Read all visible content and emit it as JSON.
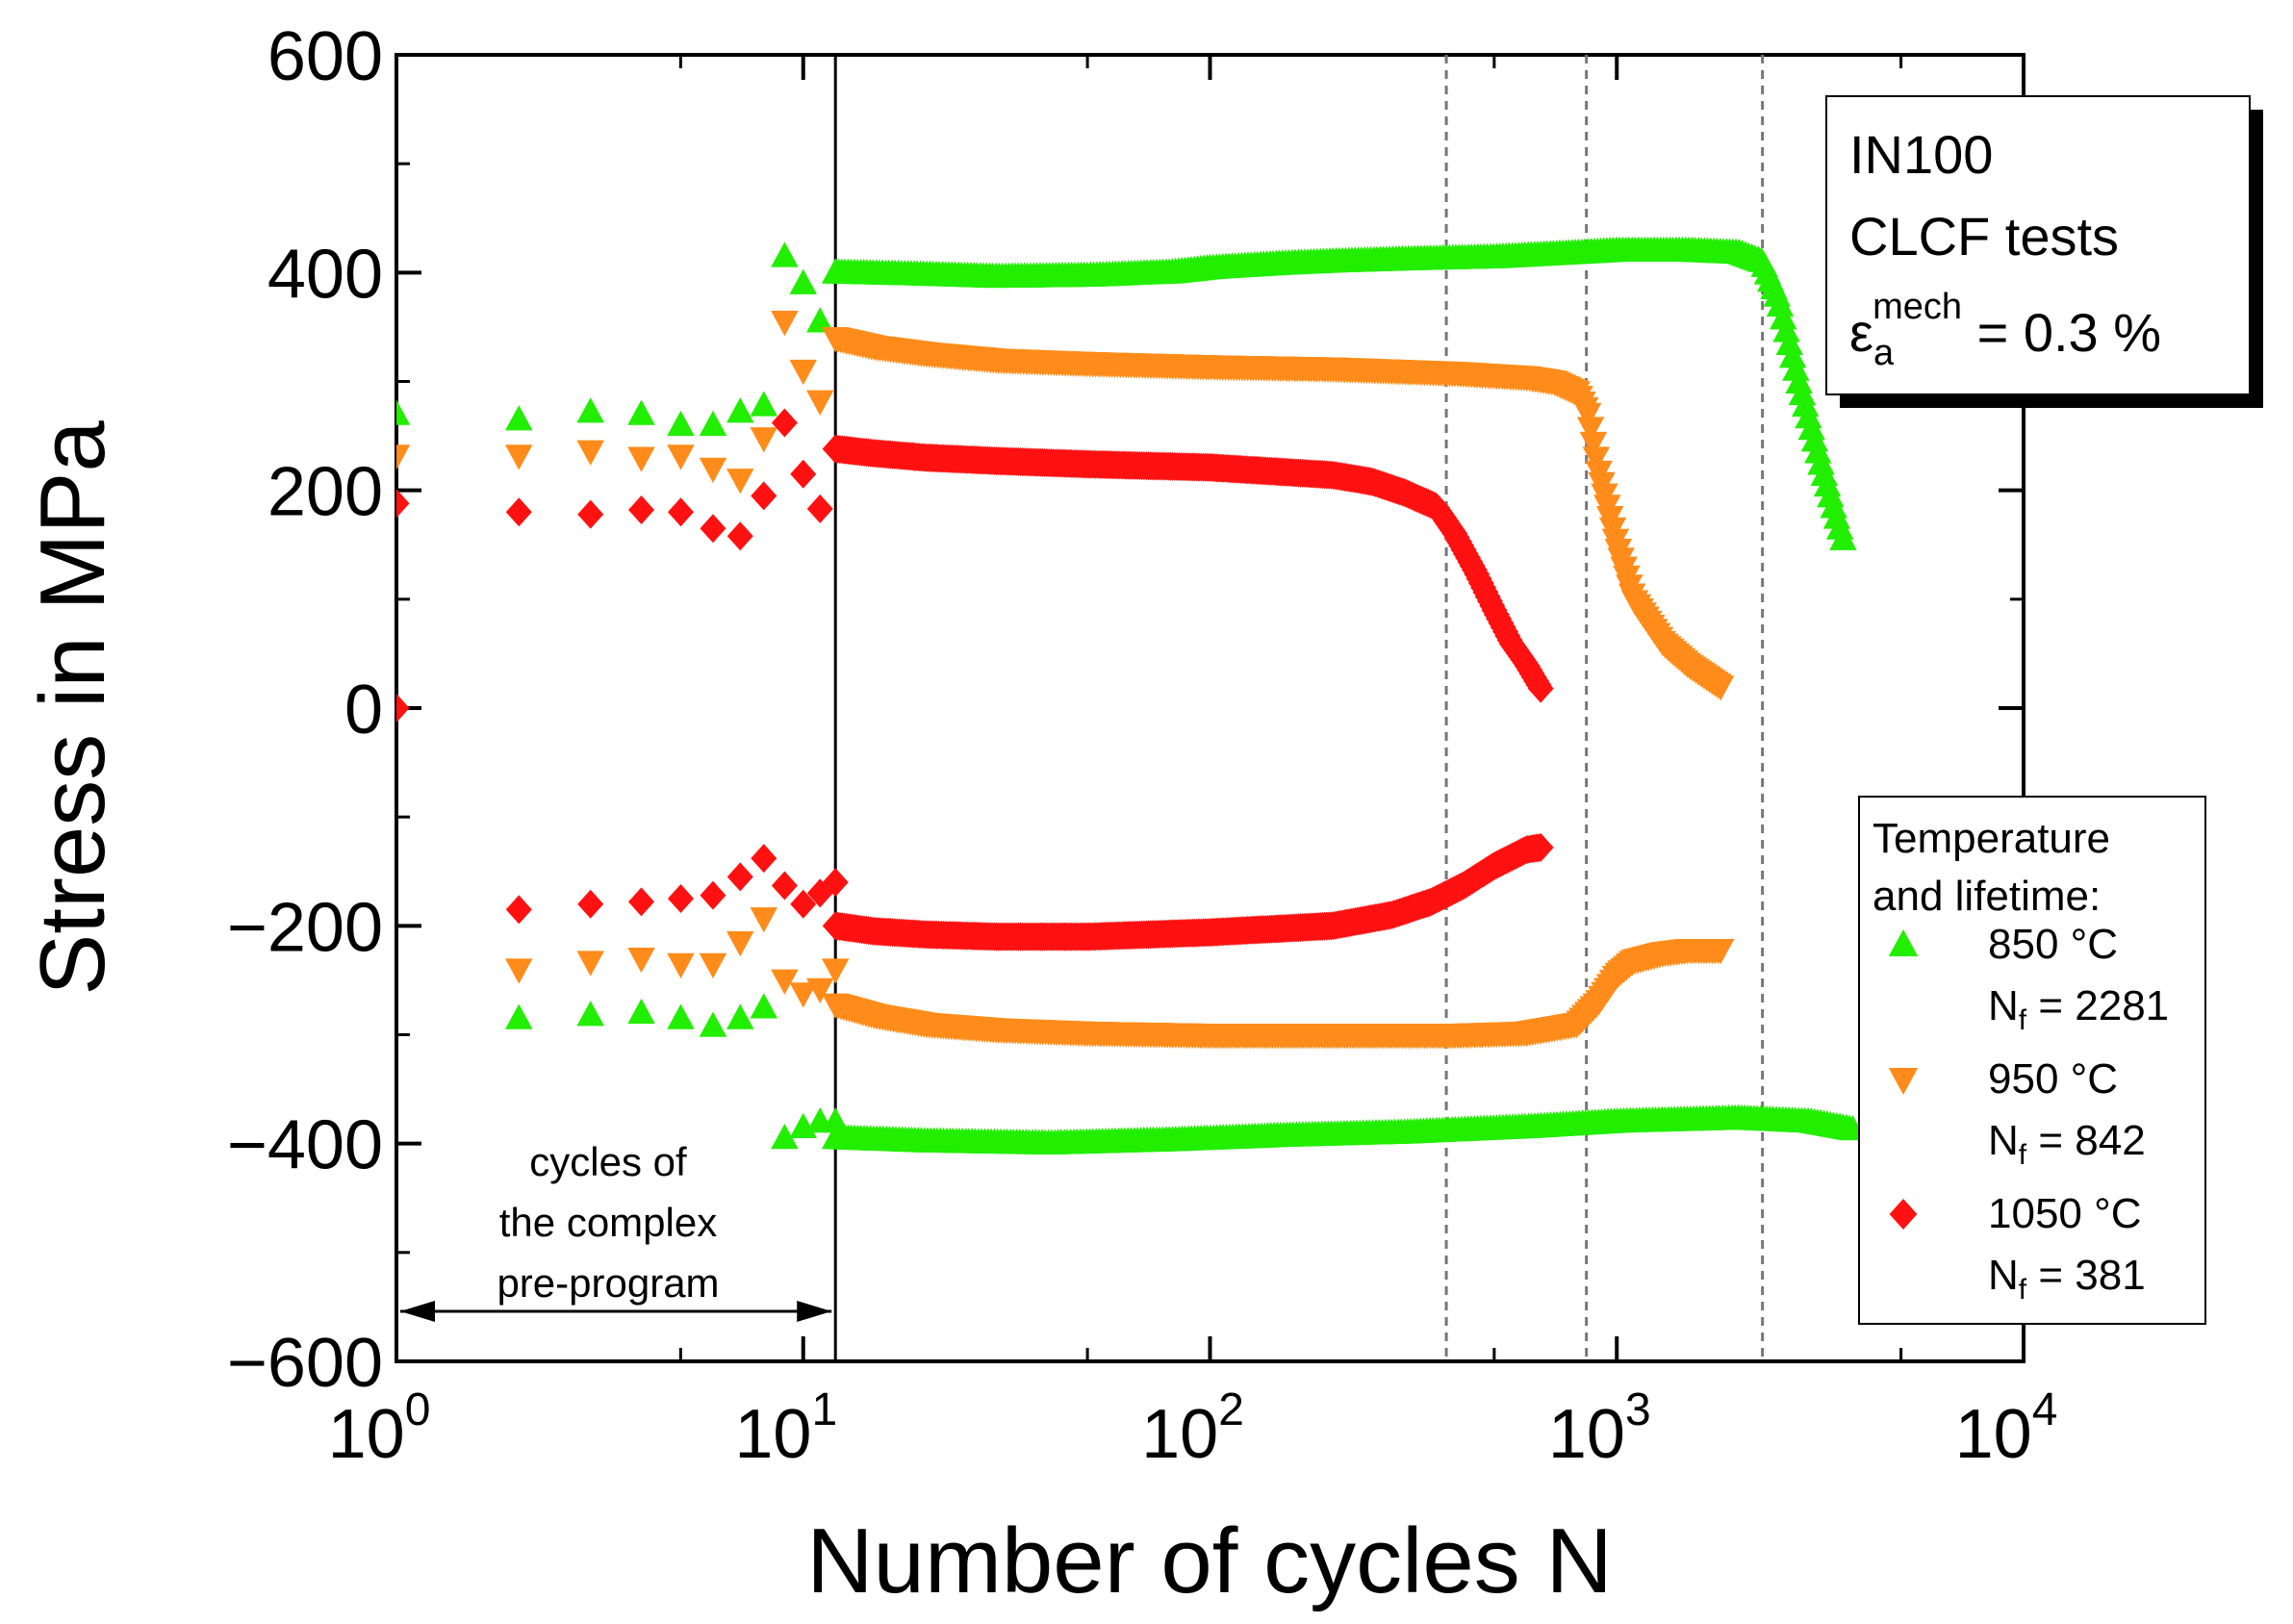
{
  "chart_data": {
    "type": "scatter",
    "xscale": "log",
    "xlim": [
      1,
      10000
    ],
    "ylim": [
      -600,
      600
    ],
    "xlabel": "Number of cycles N",
    "ylabel": "Stress in MPa",
    "x_ticks": [
      {
        "value": 1,
        "base": "10",
        "exp": "0"
      },
      {
        "value": 10,
        "base": "10",
        "exp": "1"
      },
      {
        "value": 100,
        "base": "10",
        "exp": "2"
      },
      {
        "value": 1000,
        "base": "10",
        "exp": "3"
      },
      {
        "value": 10000,
        "base": "10",
        "exp": "4"
      }
    ],
    "y_ticks": [
      {
        "value": 600,
        "label": "600"
      },
      {
        "value": 400,
        "label": "400"
      },
      {
        "value": 200,
        "label": "200"
      },
      {
        "value": 0,
        "label": "0"
      },
      {
        "value": -200,
        "label": "−200"
      },
      {
        "value": -400,
        "label": "−400"
      },
      {
        "value": -600,
        "label": "−600"
      }
    ],
    "info_box": {
      "line1": "IN100",
      "line2": "CLCF tests",
      "epsilon": "ε",
      "sub": "a",
      "sup": "mech",
      "value": " = 0.3 %"
    },
    "legend": {
      "title1": "Temperature",
      "title2": "and lifetime:",
      "position": "right"
    },
    "annotation": {
      "line1": "cycles of",
      "line2": "the complex",
      "line3": "pre-program",
      "x_start": 1,
      "x_end": 12
    },
    "vertical_lines": [
      {
        "x": 12,
        "style": "solid"
      },
      {
        "x": 381,
        "style": "dashed"
      },
      {
        "x": 842,
        "style": "dashed"
      },
      {
        "x": 2281,
        "style": "dashed"
      }
    ],
    "series": [
      {
        "name": "850 °C",
        "lifetime": "N",
        "lifetime_sub": "f",
        "lifetime_value": " = 2281",
        "marker": "triangle-up",
        "color": "#22ee00",
        "pre_max": [
          [
            1,
            270
          ],
          [
            2,
            265
          ],
          [
            3,
            272
          ],
          [
            4,
            270
          ],
          [
            5,
            260
          ],
          [
            6,
            260
          ],
          [
            7,
            272
          ],
          [
            8,
            278
          ],
          [
            9,
            415
          ],
          [
            10,
            390
          ],
          [
            11,
            355
          ],
          [
            12,
            400
          ]
        ],
        "pre_min": [
          [
            2,
            -285
          ],
          [
            3,
            -282
          ],
          [
            4,
            -280
          ],
          [
            5,
            -285
          ],
          [
            6,
            -292
          ],
          [
            7,
            -285
          ],
          [
            8,
            -275
          ],
          [
            9,
            -395
          ],
          [
            10,
            -385
          ],
          [
            11,
            -380
          ],
          [
            12,
            -380
          ]
        ],
        "max_curve": [
          [
            12,
            400
          ],
          [
            20,
            398
          ],
          [
            30,
            396
          ],
          [
            50,
            397
          ],
          [
            80,
            400
          ],
          [
            100,
            404
          ],
          [
            150,
            408
          ],
          [
            200,
            410
          ],
          [
            300,
            412
          ],
          [
            500,
            414
          ],
          [
            800,
            418
          ],
          [
            1000,
            420
          ],
          [
            1500,
            420
          ],
          [
            2000,
            418
          ],
          [
            2281,
            410
          ],
          [
            2500,
            375
          ],
          [
            2800,
            300
          ],
          [
            3200,
            220
          ],
          [
            3600,
            155
          ]
        ],
        "min_curve": [
          [
            12,
            -395
          ],
          [
            20,
            -398
          ],
          [
            40,
            -400
          ],
          [
            80,
            -397
          ],
          [
            150,
            -393
          ],
          [
            300,
            -390
          ],
          [
            600,
            -385
          ],
          [
            1000,
            -380
          ],
          [
            2000,
            -377
          ],
          [
            3000,
            -380
          ],
          [
            3800,
            -387
          ]
        ]
      },
      {
        "name": "950 °C",
        "lifetime": "N",
        "lifetime_sub": "f",
        "lifetime_value": " = 842",
        "marker": "triangle-down",
        "color": "#ff8c1a",
        "pre_max": [
          [
            1,
            232
          ],
          [
            2,
            232
          ],
          [
            3,
            236
          ],
          [
            4,
            230
          ],
          [
            5,
            232
          ],
          [
            6,
            220
          ],
          [
            7,
            210
          ],
          [
            8,
            248
          ],
          [
            9,
            355
          ],
          [
            10,
            310
          ],
          [
            11,
            282
          ],
          [
            12,
            340
          ]
        ],
        "pre_min": [
          [
            2,
            -240
          ],
          [
            3,
            -233
          ],
          [
            4,
            -230
          ],
          [
            5,
            -235
          ],
          [
            6,
            -235
          ],
          [
            7,
            -215
          ],
          [
            8,
            -193
          ],
          [
            9,
            -250
          ],
          [
            10,
            -262
          ],
          [
            11,
            -258
          ],
          [
            12,
            -240
          ]
        ],
        "max_curve": [
          [
            12,
            340
          ],
          [
            15,
            332
          ],
          [
            20,
            326
          ],
          [
            30,
            320
          ],
          [
            50,
            317
          ],
          [
            100,
            314
          ],
          [
            200,
            312
          ],
          [
            400,
            308
          ],
          [
            600,
            304
          ],
          [
            700,
            300
          ],
          [
            800,
            290
          ],
          [
            850,
            270
          ],
          [
            900,
            220
          ],
          [
            1000,
            150
          ],
          [
            1100,
            100
          ],
          [
            1300,
            60
          ],
          [
            1500,
            40
          ],
          [
            1800,
            20
          ]
        ],
        "min_curve": [
          [
            12,
            -272
          ],
          [
            15,
            -282
          ],
          [
            20,
            -290
          ],
          [
            30,
            -295
          ],
          [
            50,
            -298
          ],
          [
            100,
            -300
          ],
          [
            200,
            -300
          ],
          [
            400,
            -300
          ],
          [
            600,
            -298
          ],
          [
            800,
            -290
          ],
          [
            900,
            -270
          ],
          [
            1000,
            -245
          ],
          [
            1100,
            -232
          ],
          [
            1300,
            -225
          ],
          [
            1500,
            -222
          ],
          [
            1800,
            -222
          ]
        ]
      },
      {
        "name": "1050 °C",
        "lifetime": "N",
        "lifetime_sub": "f",
        "lifetime_value": " = 381",
        "marker": "diamond",
        "color": "#ff1111",
        "pre_max": [
          [
            1,
            188
          ],
          [
            2,
            180
          ],
          [
            3,
            178
          ],
          [
            4,
            182
          ],
          [
            5,
            180
          ],
          [
            6,
            165
          ],
          [
            7,
            158
          ],
          [
            8,
            195
          ],
          [
            9,
            262
          ],
          [
            10,
            215
          ],
          [
            11,
            183
          ],
          [
            12,
            238
          ]
        ],
        "pre_min": [
          [
            1,
            0
          ],
          [
            2,
            -185
          ],
          [
            3,
            -180
          ],
          [
            4,
            -178
          ],
          [
            5,
            -175
          ],
          [
            6,
            -172
          ],
          [
            7,
            -155
          ],
          [
            8,
            -138
          ],
          [
            9,
            -163
          ],
          [
            10,
            -180
          ],
          [
            11,
            -170
          ],
          [
            12,
            -160
          ]
        ],
        "max_curve": [
          [
            12,
            238
          ],
          [
            15,
            234
          ],
          [
            20,
            230
          ],
          [
            30,
            227
          ],
          [
            50,
            224
          ],
          [
            100,
            221
          ],
          [
            200,
            214
          ],
          [
            250,
            208
          ],
          [
            300,
            198
          ],
          [
            360,
            185
          ],
          [
            400,
            160
          ],
          [
            450,
            125
          ],
          [
            500,
            90
          ],
          [
            550,
            60
          ],
          [
            600,
            40
          ],
          [
            650,
            18
          ]
        ],
        "min_curve": [
          [
            12,
            -200
          ],
          [
            15,
            -205
          ],
          [
            20,
            -208
          ],
          [
            30,
            -210
          ],
          [
            50,
            -210
          ],
          [
            100,
            -206
          ],
          [
            200,
            -200
          ],
          [
            280,
            -190
          ],
          [
            350,
            -178
          ],
          [
            420,
            -163
          ],
          [
            500,
            -145
          ],
          [
            600,
            -130
          ],
          [
            650,
            -128
          ]
        ]
      }
    ]
  }
}
